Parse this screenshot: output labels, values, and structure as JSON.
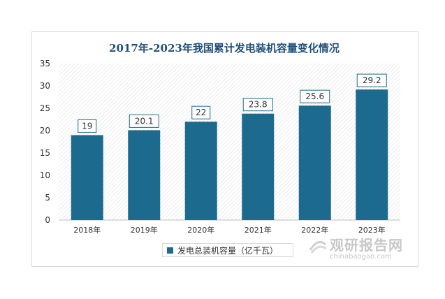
{
  "chart_data": {
    "type": "bar",
    "title": "2017年-2023年我国累计发电装机容量变化情况",
    "categories": [
      "2018年",
      "2019年",
      "2020年",
      "2021年",
      "2022年",
      "2023年"
    ],
    "series": [
      {
        "name": "发电总装机容量（亿千瓦）",
        "values": [
          19,
          20.1,
          22,
          23.8,
          25.6,
          29.2
        ]
      }
    ],
    "value_labels": [
      "19",
      "20.1",
      "22",
      "23.8",
      "25.6",
      "29.2"
    ],
    "yticks": [
      "0",
      "5",
      "10",
      "15",
      "20",
      "25",
      "30",
      "35"
    ],
    "ylim": [
      0,
      35
    ],
    "grid": false,
    "plot_background": "diagonal-hatch",
    "legend_position": "bottom",
    "bar_color": "#1c6b8e",
    "label_border_color": "#1c6b8e"
  },
  "watermark": {
    "brand": "观研报告网",
    "url": "chinabaogao.com"
  }
}
